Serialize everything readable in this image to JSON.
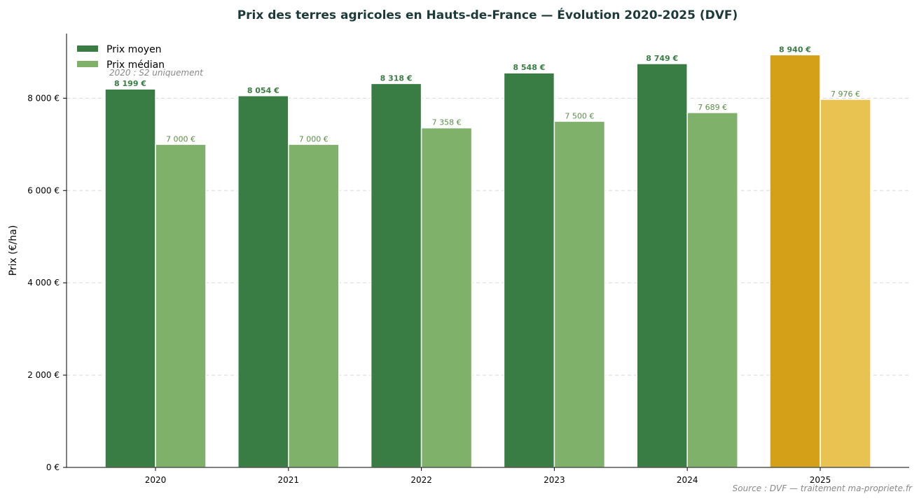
{
  "chart_data": {
    "type": "bar",
    "title": "Prix des terres agricoles en Hauts-de-France — Évolution 2020-2025 (DVF)",
    "ylabel": "Prix (€/ha)",
    "xlabel": "",
    "categories": [
      "2020",
      "2021",
      "2022",
      "2023",
      "2024",
      "2025"
    ],
    "series": [
      {
        "name": "Prix moyen",
        "values": [
          8199,
          8054,
          8318,
          8548,
          8749,
          8940
        ],
        "labels": [
          "8 199 €",
          "8 054 €",
          "8 318 €",
          "8 548 €",
          "8 749 €",
          "8 940 €"
        ],
        "color": "#3a7d44",
        "highlight_color": "#d4a017"
      },
      {
        "name": "Prix médian",
        "values": [
          7000,
          7000,
          7358,
          7500,
          7689,
          7976
        ],
        "labels": [
          "7 000 €",
          "7 000 €",
          "7 358 €",
          "7 500 €",
          "7 689 €",
          "7 976 €"
        ],
        "color": "#80b16a",
        "highlight_color": "#e8c352"
      }
    ],
    "highlight_category": "2025",
    "ylim": [
      0,
      9400
    ],
    "yticks": [
      0,
      2000,
      4000,
      6000,
      8000
    ],
    "ytick_labels": [
      "0 €",
      "2 000 €",
      "4 000 €",
      "6 000 €",
      "8 000 €"
    ],
    "grid": true,
    "legend_position": "top-left",
    "annotation": "2020 : S2 uniquement",
    "source": "Source : DVF — traitement ma-propriete.fr"
  }
}
